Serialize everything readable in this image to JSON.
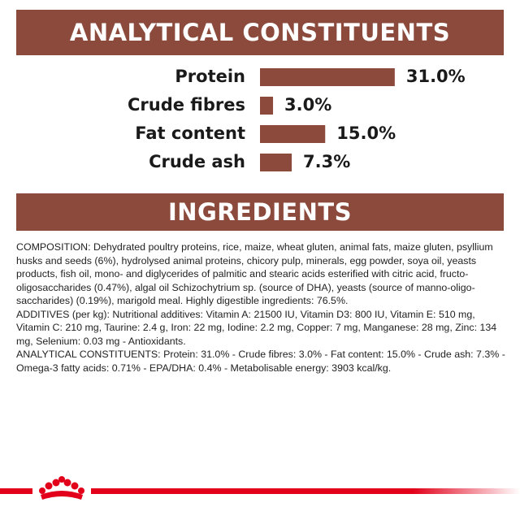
{
  "chart_data": {
    "type": "bar",
    "title": "ANALYTICAL CONSTITUENTS",
    "categories": [
      "Protein",
      "Crude fibres",
      "Fat content",
      "Crude ash"
    ],
    "values": [
      31.0,
      3.0,
      15.0,
      7.3
    ],
    "value_labels": [
      "31.0%",
      "3.0%",
      "15.0%",
      "7.3%"
    ],
    "color": "#8b4a3c",
    "orientation": "horizontal"
  },
  "ingredients": {
    "title": "INGREDIENTS",
    "paragraphs": [
      "COMPOSITION: Dehydrated poultry proteins, rice, maize, wheat gluten, animal fats, maize gluten, psyllium husks and seeds (6%), hydrolysed animal proteins, chicory pulp, minerals, egg powder, soya oil, yeasts products, fish oil, mono- and diglycerides of palmitic and stearic acids esterified with citric acid, fructo-oligosaccharides (0.47%), algal oil Schizochytrium sp. (source of DHA), yeasts (source of manno-oligo-saccharides) (0.19%), marigold meal. Highly digestible ingredients: 76.5%.",
      "ADDITIVES (per kg): Nutritional additives: Vitamin A: 21500 IU, Vitamin D3: 800 IU, Vitamin E: 510 mg, Vitamin C: 210 mg, Taurine: 2.4 g, Iron: 22 mg, Iodine: 2.2 mg, Copper: 7 mg, Manganese: 28 mg, Zinc: 134 mg, Selenium: 0.03 mg - Antioxidants.",
      "ANALYTICAL CONSTITUENTS: Protein: 31.0% - Crude fibres: 3.0% - Fat content: 15.0% - Crude ash: 7.3% - Omega-3 fatty acids: 0.71% - EPA/DHA: 0.4% - Metabolisable energy: 3903 kcal/kg."
    ]
  }
}
